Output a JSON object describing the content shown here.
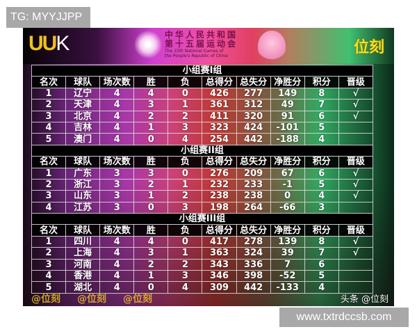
{
  "overlay": {
    "tg_label": "TG: MYYJJPP",
    "site_label": "www.txtrdccsb.com"
  },
  "banner": {
    "left_logo": "UUK",
    "games_cn_line1": "中华人民共和国",
    "games_cn_line2": "第十五届运动会",
    "games_en_line1": "The 15th National Games of",
    "games_en_line2": "the People's Republic of China",
    "right_logo": "位刻"
  },
  "headers": [
    "名次",
    "球队",
    "场次数",
    "胜",
    "负",
    "总得分",
    "总失分",
    "净胜分",
    "积分",
    "晋级"
  ],
  "groups": [
    {
      "title": "小组赛I组",
      "rows": [
        [
          "1",
          "辽宁",
          "4",
          "4",
          "0",
          "426",
          "277",
          "149",
          "8",
          "√"
        ],
        [
          "2",
          "天津",
          "4",
          "3",
          "1",
          "361",
          "312",
          "49",
          "7",
          "√"
        ],
        [
          "3",
          "北京",
          "4",
          "2",
          "2",
          "411",
          "320",
          "91",
          "6",
          "√"
        ],
        [
          "4",
          "吉林",
          "4",
          "1",
          "3",
          "323",
          "424",
          "-101",
          "5",
          ""
        ],
        [
          "5",
          "澳门",
          "4",
          "0",
          "4",
          "254",
          "442",
          "-188",
          "4",
          ""
        ]
      ]
    },
    {
      "title": "小组赛II组",
      "rows": [
        [
          "1",
          "广东",
          "3",
          "3",
          "0",
          "276",
          "209",
          "67",
          "6",
          "√"
        ],
        [
          "2",
          "浙江",
          "3",
          "2",
          "1",
          "232",
          "233",
          "-1",
          "5",
          "√"
        ],
        [
          "3",
          "山东",
          "3",
          "1",
          "2",
          "238",
          "238",
          "0",
          "4",
          "√"
        ],
        [
          "4",
          "江苏",
          "3",
          "0",
          "3",
          "198",
          "264",
          "-66",
          "3",
          ""
        ]
      ]
    },
    {
      "title": "小组赛III组",
      "rows": [
        [
          "1",
          "四川",
          "4",
          "4",
          "0",
          "417",
          "278",
          "139",
          "8",
          "√"
        ],
        [
          "2",
          "上海",
          "4",
          "3",
          "1",
          "363",
          "324",
          "39",
          "7",
          "√"
        ],
        [
          "3",
          "河南",
          "4",
          "2",
          "2",
          "343",
          "336",
          "7",
          "6",
          ""
        ],
        [
          "4",
          "香港",
          "4",
          "1",
          "3",
          "346",
          "398",
          "-52",
          "5",
          ""
        ],
        [
          "5",
          "湖北",
          "4",
          "0",
          "4",
          "309",
          "442",
          "-133",
          "4",
          ""
        ]
      ]
    }
  ],
  "watermark": "@位刻",
  "footer_credit": "头条 @位刻"
}
